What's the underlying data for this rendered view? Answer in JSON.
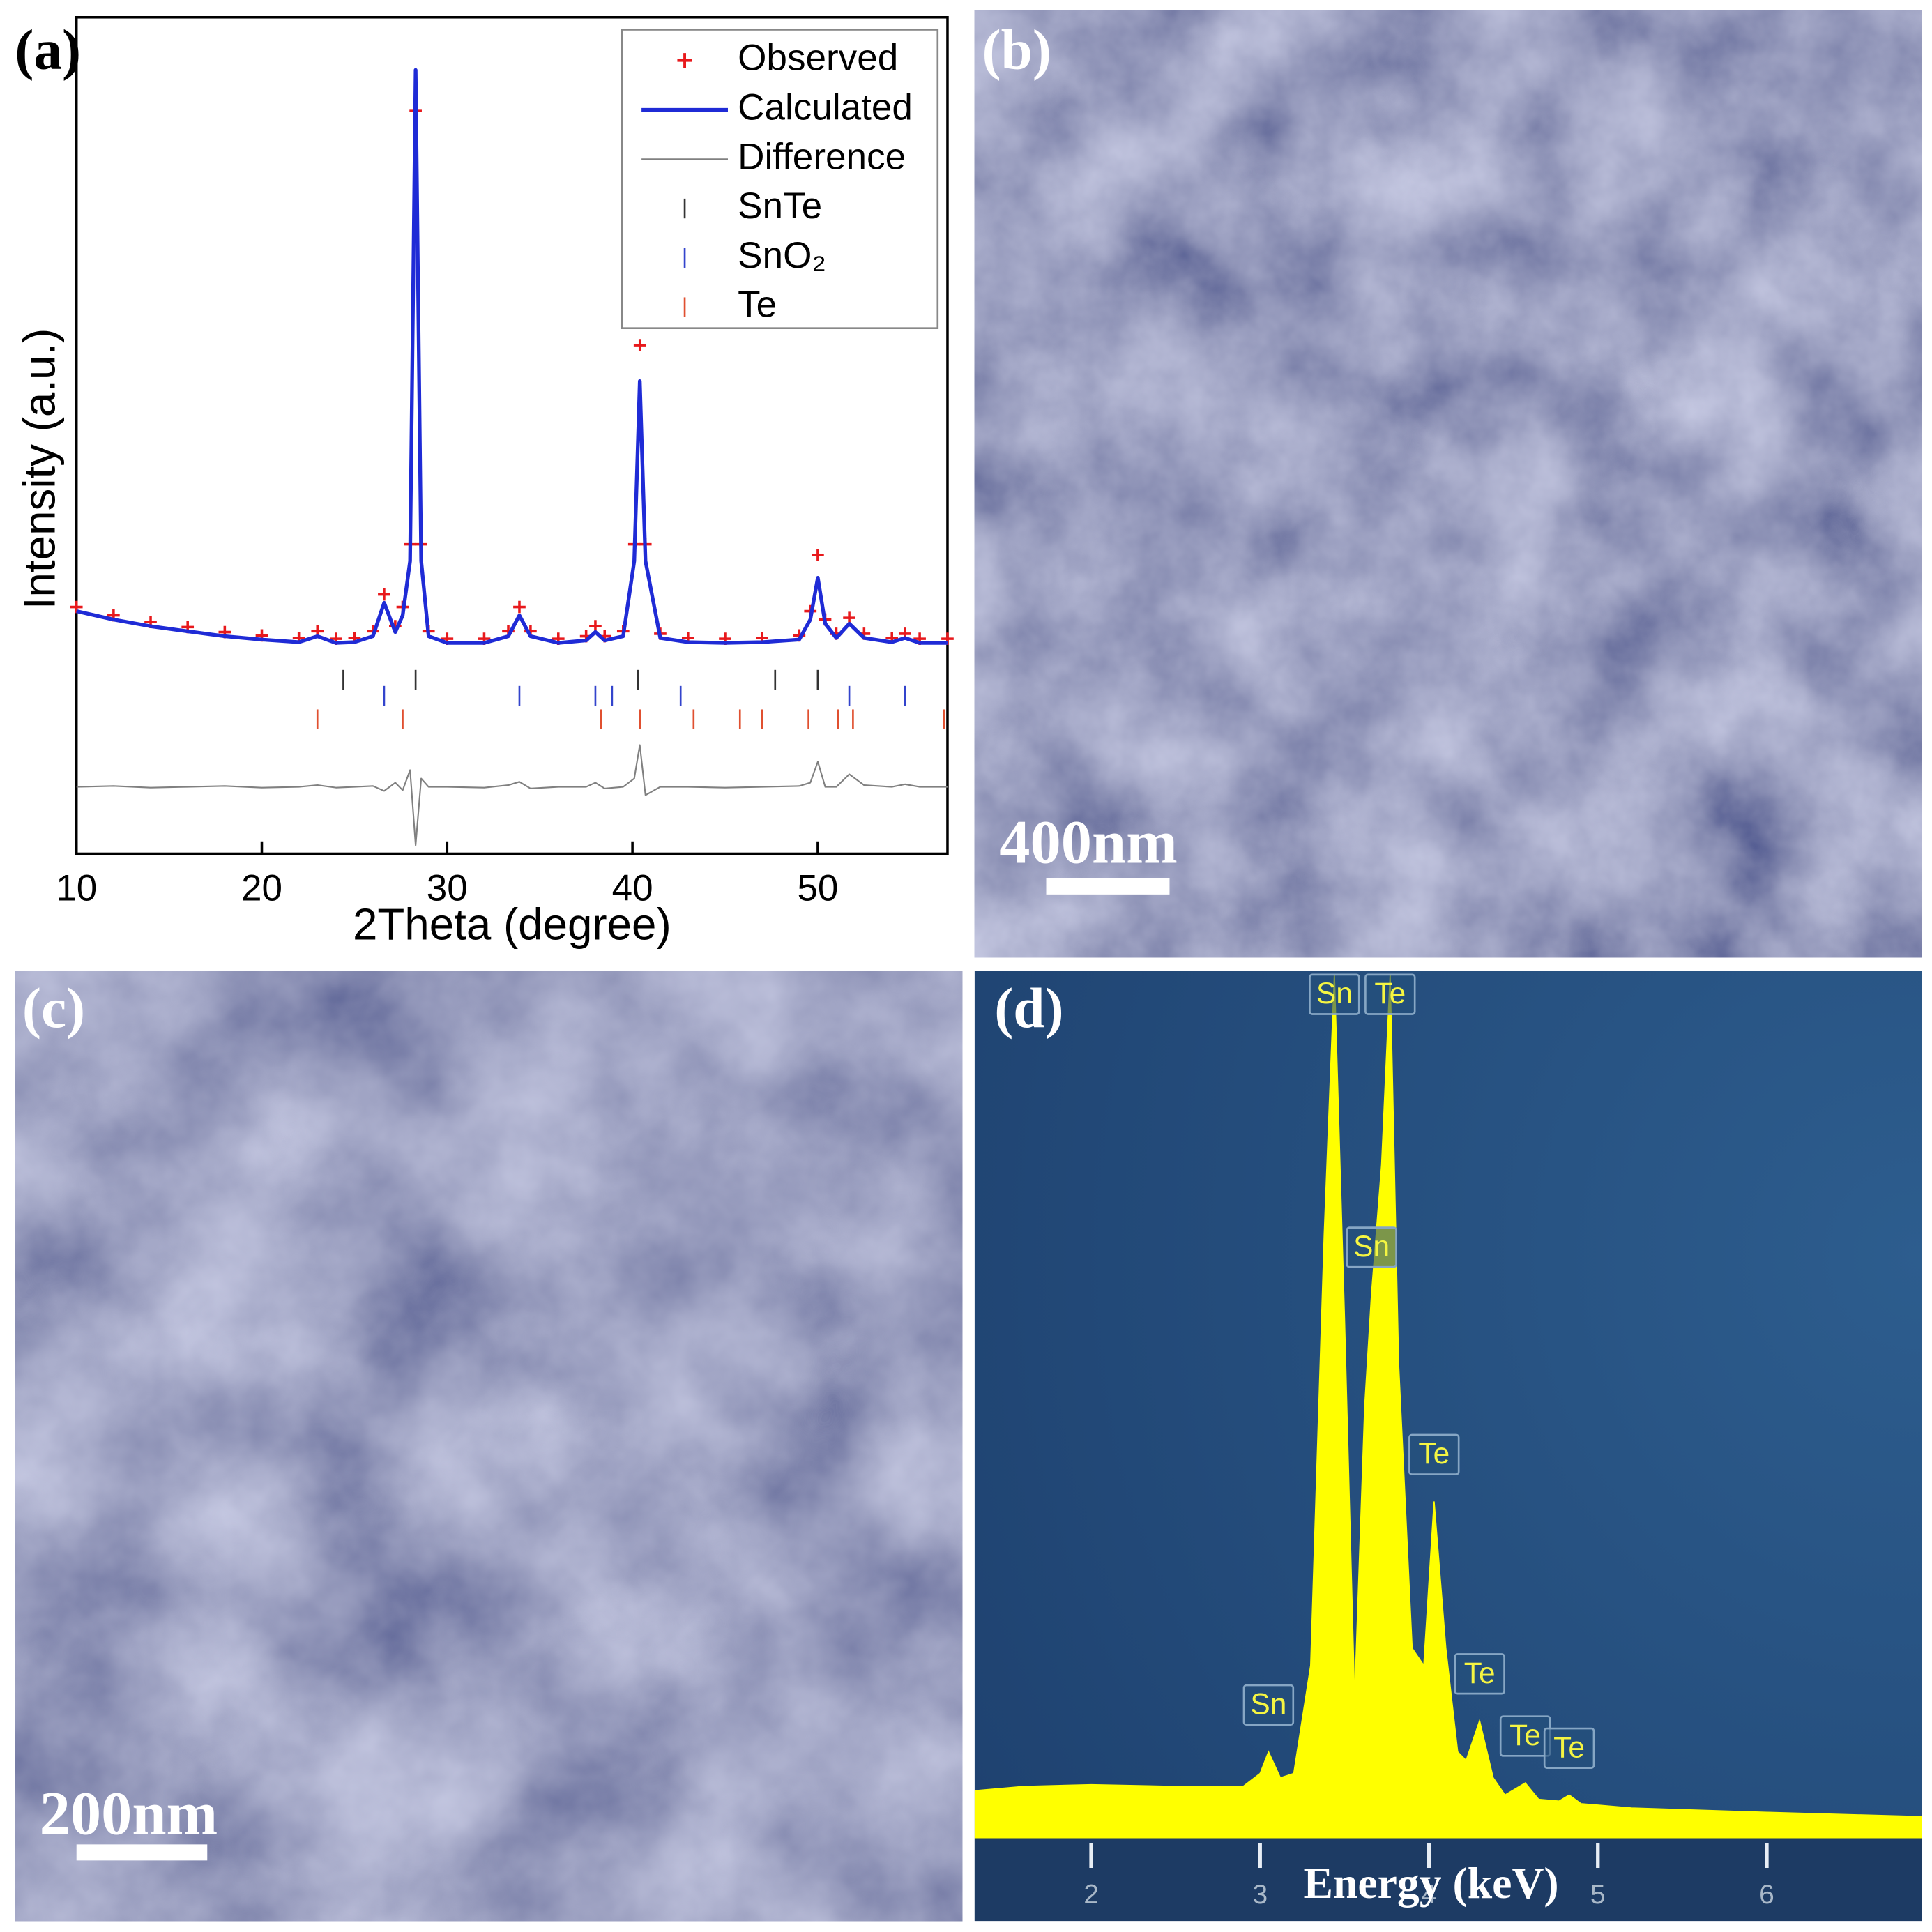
{
  "chart_data": [
    {
      "type": "line",
      "panel_label": "(a)",
      "xlabel": "2Theta (degree)",
      "ylabel": "Intensity (a.u.)",
      "xlim": [
        10,
        57
      ],
      "ylim": [
        0,
        100
      ],
      "xticks": [
        10,
        20,
        30,
        40,
        50
      ],
      "x": [
        10,
        12,
        14,
        16,
        18,
        20,
        22,
        23,
        24,
        25,
        26,
        26.6,
        27.2,
        27.6,
        28.0,
        28.3,
        28.6,
        29,
        30,
        32,
        33.3,
        33.9,
        34.5,
        36,
        37.5,
        38,
        38.5,
        39.5,
        40.1,
        40.4,
        40.7,
        41.5,
        43,
        45,
        47,
        49,
        49.6,
        50,
        50.4,
        51,
        51.7,
        52.5,
        54,
        54.7,
        55.5,
        57
      ],
      "series": [
        {
          "name": "Observed",
          "color": "#e8191c",
          "marker": "+",
          "values": [
            29.5,
            28.5,
            27.7,
            27.1,
            26.5,
            26.1,
            25.8,
            26.6,
            25.7,
            25.8,
            26.6,
            31,
            27.2,
            29.5,
            37,
            88.8,
            37,
            26.6,
            25.7,
            25.7,
            26.6,
            29.5,
            26.6,
            25.7,
            26,
            27.2,
            26,
            26.6,
            37,
            60.8,
            37,
            26.3,
            25.8,
            25.7,
            25.8,
            26.1,
            29,
            35.7,
            28,
            26.3,
            28.2,
            26.3,
            25.8,
            26.3,
            25.7,
            25.7
          ]
        },
        {
          "name": "Calculated",
          "color": "#1f2bd6",
          "line_width": 3,
          "values": [
            29,
            28,
            27.2,
            26.6,
            26,
            25.6,
            25.3,
            26,
            25.2,
            25.3,
            26,
            30,
            26.5,
            28.5,
            35,
            93.7,
            35,
            26,
            25.2,
            25.2,
            26,
            28.5,
            26,
            25.2,
            25.5,
            26.5,
            25.5,
            26,
            35,
            56.5,
            35,
            25.8,
            25.3,
            25.2,
            25.3,
            25.6,
            28,
            33,
            27.5,
            25.8,
            27.5,
            25.8,
            25.3,
            25.8,
            25.2,
            25.2
          ]
        },
        {
          "name": "Difference",
          "color": "#808080",
          "line_width": 1.2,
          "values": [
            8,
            8.1,
            7.9,
            8,
            8.1,
            7.9,
            8,
            8.2,
            7.9,
            8,
            8.1,
            7.5,
            8.5,
            7.6,
            10,
            1,
            9,
            8,
            8,
            7.9,
            8.2,
            8.6,
            7.8,
            8,
            8,
            8.5,
            7.8,
            8,
            9,
            13,
            7,
            8,
            8,
            7.9,
            8,
            8.1,
            8.5,
            11,
            8,
            8,
            9.5,
            8.2,
            8,
            8.3,
            8,
            8
          ]
        }
      ],
      "reflections": [
        {
          "name": "SnTe",
          "color": "#333333",
          "x": [
            24.4,
            28.3,
            40.3,
            47.7,
            50.0
          ]
        },
        {
          "name": "SnO₂",
          "color": "#3344cc",
          "x": [
            26.6,
            33.9,
            38.0,
            38.9,
            42.6,
            51.7,
            54.7
          ]
        },
        {
          "name": "Te",
          "color": "#e05030",
          "x": [
            23.0,
            27.6,
            38.3,
            40.4,
            43.3,
            45.8,
            47.0,
            49.5,
            51.1,
            51.9,
            56.8
          ]
        }
      ]
    },
    {
      "type": "area",
      "panel_label": "(d)",
      "xlabel": "Energy (keV)",
      "xlim": [
        1.31,
        6.92
      ],
      "ylim": [
        0,
        100
      ],
      "xticks": [
        2,
        3,
        4,
        5,
        6
      ],
      "color": "#ffff00",
      "x": [
        1.31,
        1.6,
        2.0,
        2.5,
        2.9,
        3.0,
        3.05,
        3.12,
        3.2,
        3.3,
        3.38,
        3.44,
        3.5,
        3.56,
        3.62,
        3.66,
        3.72,
        3.77,
        3.82,
        3.9,
        3.97,
        4.03,
        4.1,
        4.17,
        4.22,
        4.3,
        4.38,
        4.45,
        4.57,
        4.65,
        4.77,
        4.83,
        4.9,
        5.2,
        6,
        6.92
      ],
      "values": [
        5.5,
        6,
        6.2,
        6,
        6,
        7.5,
        10,
        7,
        7.5,
        20,
        70,
        100,
        60,
        16,
        50,
        63,
        78,
        100,
        55,
        22,
        20,
        39,
        22,
        10,
        9,
        13.6,
        7,
        5,
        6.4,
        4.5,
        4.3,
        5,
        4,
        3.5,
        3,
        2.5
      ],
      "peak_labels": [
        {
          "label": "Sn",
          "x": 3.44
        },
        {
          "label": "Te",
          "x": 3.77
        },
        {
          "label": "Sn",
          "x": 3.66
        },
        {
          "label": "Te",
          "x": 4.03
        },
        {
          "label": "Te",
          "x": 4.3
        },
        {
          "label": "Sn",
          "x": 3.05
        },
        {
          "label": "Te",
          "x": 4.57
        },
        {
          "label": "Te",
          "x": 4.83
        }
      ]
    }
  ],
  "images": [
    {
      "panel_label": "(b)",
      "scale_bar": "400nm"
    },
    {
      "panel_label": "(c)",
      "scale_bar": "200nm"
    }
  ]
}
